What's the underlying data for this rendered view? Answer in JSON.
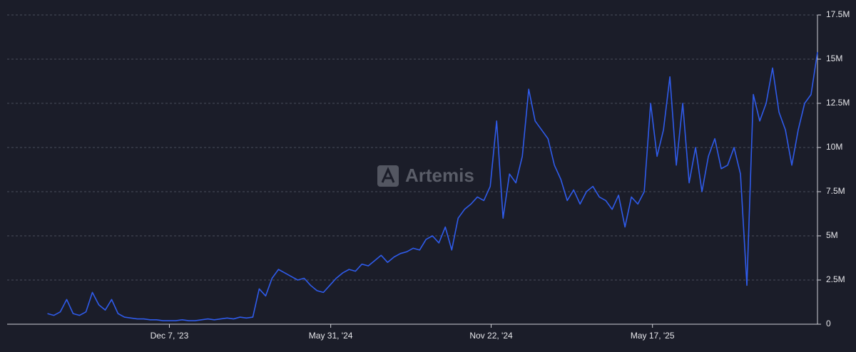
{
  "chart_data": {
    "type": "line",
    "watermark": "Artemis",
    "color": "#2f5bea",
    "x": [
      "2023-07-27",
      "2023-08-03",
      "2023-08-10",
      "2023-08-17",
      "2023-08-24",
      "2023-08-31",
      "2023-09-07",
      "2023-09-14",
      "2023-09-21",
      "2023-09-28",
      "2023-10-05",
      "2023-10-12",
      "2023-10-19",
      "2023-10-26",
      "2023-11-02",
      "2023-11-09",
      "2023-11-16",
      "2023-11-23",
      "2023-11-30",
      "2023-12-07",
      "2023-12-14",
      "2023-12-21",
      "2023-12-28",
      "2024-01-04",
      "2024-01-11",
      "2024-01-18",
      "2024-01-25",
      "2024-02-01",
      "2024-02-08",
      "2024-02-15",
      "2024-02-22",
      "2024-02-29",
      "2024-03-07",
      "2024-03-14",
      "2024-03-21",
      "2024-03-28",
      "2024-04-04",
      "2024-04-11",
      "2024-04-18",
      "2024-04-25",
      "2024-05-02",
      "2024-05-09",
      "2024-05-16",
      "2024-05-23",
      "2024-05-30",
      "2024-06-06",
      "2024-06-13",
      "2024-06-20",
      "2024-06-27",
      "2024-07-04",
      "2024-07-11",
      "2024-07-18",
      "2024-07-25",
      "2024-08-01",
      "2024-08-08",
      "2024-08-15",
      "2024-08-22",
      "2024-08-29",
      "2024-09-05",
      "2024-09-12",
      "2024-09-19",
      "2024-09-26",
      "2024-10-03",
      "2024-10-10",
      "2024-10-17",
      "2024-10-24",
      "2024-10-31",
      "2024-11-07",
      "2024-11-14",
      "2024-11-21",
      "2024-11-28",
      "2024-12-05",
      "2024-12-12",
      "2024-12-19",
      "2024-12-26",
      "2025-01-02",
      "2025-01-09",
      "2025-01-16",
      "2025-01-23",
      "2025-01-30",
      "2025-02-06",
      "2025-02-13",
      "2025-02-20",
      "2025-02-27",
      "2025-03-06",
      "2025-03-13",
      "2025-03-20",
      "2025-03-27",
      "2025-04-03",
      "2025-04-10",
      "2025-04-17",
      "2025-04-24",
      "2025-05-01",
      "2025-05-08",
      "2025-05-15",
      "2025-05-22",
      "2025-05-29",
      "2025-06-05",
      "2025-06-12",
      "2025-06-19",
      "2025-06-26",
      "2025-07-03",
      "2025-07-10",
      "2025-07-17",
      "2025-07-24",
      "2025-07-31",
      "2025-08-07",
      "2025-08-14",
      "2025-08-21",
      "2025-08-28",
      "2025-09-04",
      "2025-09-11",
      "2025-09-18",
      "2025-09-25",
      "2025-10-02",
      "2025-10-09",
      "2025-10-16",
      "2025-10-23",
      "2025-10-30",
      "2025-11-06",
      "2025-11-13"
    ],
    "values": [
      600000,
      500000,
      700000,
      1400000,
      600000,
      500000,
      700000,
      1800000,
      1100000,
      800000,
      1400000,
      600000,
      400000,
      350000,
      300000,
      300000,
      250000,
      250000,
      200000,
      200000,
      200000,
      250000,
      200000,
      200000,
      250000,
      300000,
      250000,
      300000,
      350000,
      300000,
      400000,
      350000,
      400000,
      2000000,
      1600000,
      2600000,
      3100000,
      2900000,
      2700000,
      2500000,
      2600000,
      2200000,
      1900000,
      1800000,
      2200000,
      2600000,
      2900000,
      3100000,
      3000000,
      3400000,
      3300000,
      3600000,
      3900000,
      3500000,
      3800000,
      4000000,
      4100000,
      4300000,
      4200000,
      4800000,
      5000000,
      4600000,
      5500000,
      4200000,
      6000000,
      6500000,
      6800000,
      7200000,
      7000000,
      7800000,
      11500000,
      6000000,
      8500000,
      8000000,
      9500000,
      13300000,
      11500000,
      11000000,
      10500000,
      9000000,
      8200000,
      7000000,
      7600000,
      6800000,
      7500000,
      7800000,
      7200000,
      7000000,
      6500000,
      7300000,
      5500000,
      7200000,
      6800000,
      7500000,
      12500000,
      9500000,
      11000000,
      14000000,
      9000000,
      12500000,
      8000000,
      10000000,
      7500000,
      9500000,
      10500000,
      8800000,
      9000000,
      10000000,
      8500000,
      2200000,
      13000000,
      11500000,
      12500000,
      14500000,
      12000000,
      11000000,
      9000000,
      11000000,
      12500000,
      13000000,
      15400000
    ],
    "xlim": [
      "2023-06-13",
      "2025-11-13"
    ],
    "xticks": [
      {
        "value": "2023-12-07",
        "label": "Dec 7, '23"
      },
      {
        "value": "2024-05-31",
        "label": "May 31, '24"
      },
      {
        "value": "2024-11-22",
        "label": "Nov 22, '24"
      },
      {
        "value": "2025-05-17",
        "label": "May 17, '25"
      }
    ],
    "ylim": [
      0,
      17500000
    ],
    "yticks": [
      0,
      {
        "value": 2500000,
        "label": "2.5M"
      },
      {
        "value": 5000000,
        "label": "5M"
      },
      {
        "value": 7500000,
        "label": "7.5M"
      },
      {
        "value": 10000000,
        "label": "10M"
      },
      {
        "value": 12500000,
        "label": "12.5M"
      },
      {
        "value": 15000000,
        "label": "15M"
      },
      {
        "value": 17500000,
        "label": "17.5M"
      }
    ],
    "grid": true
  }
}
